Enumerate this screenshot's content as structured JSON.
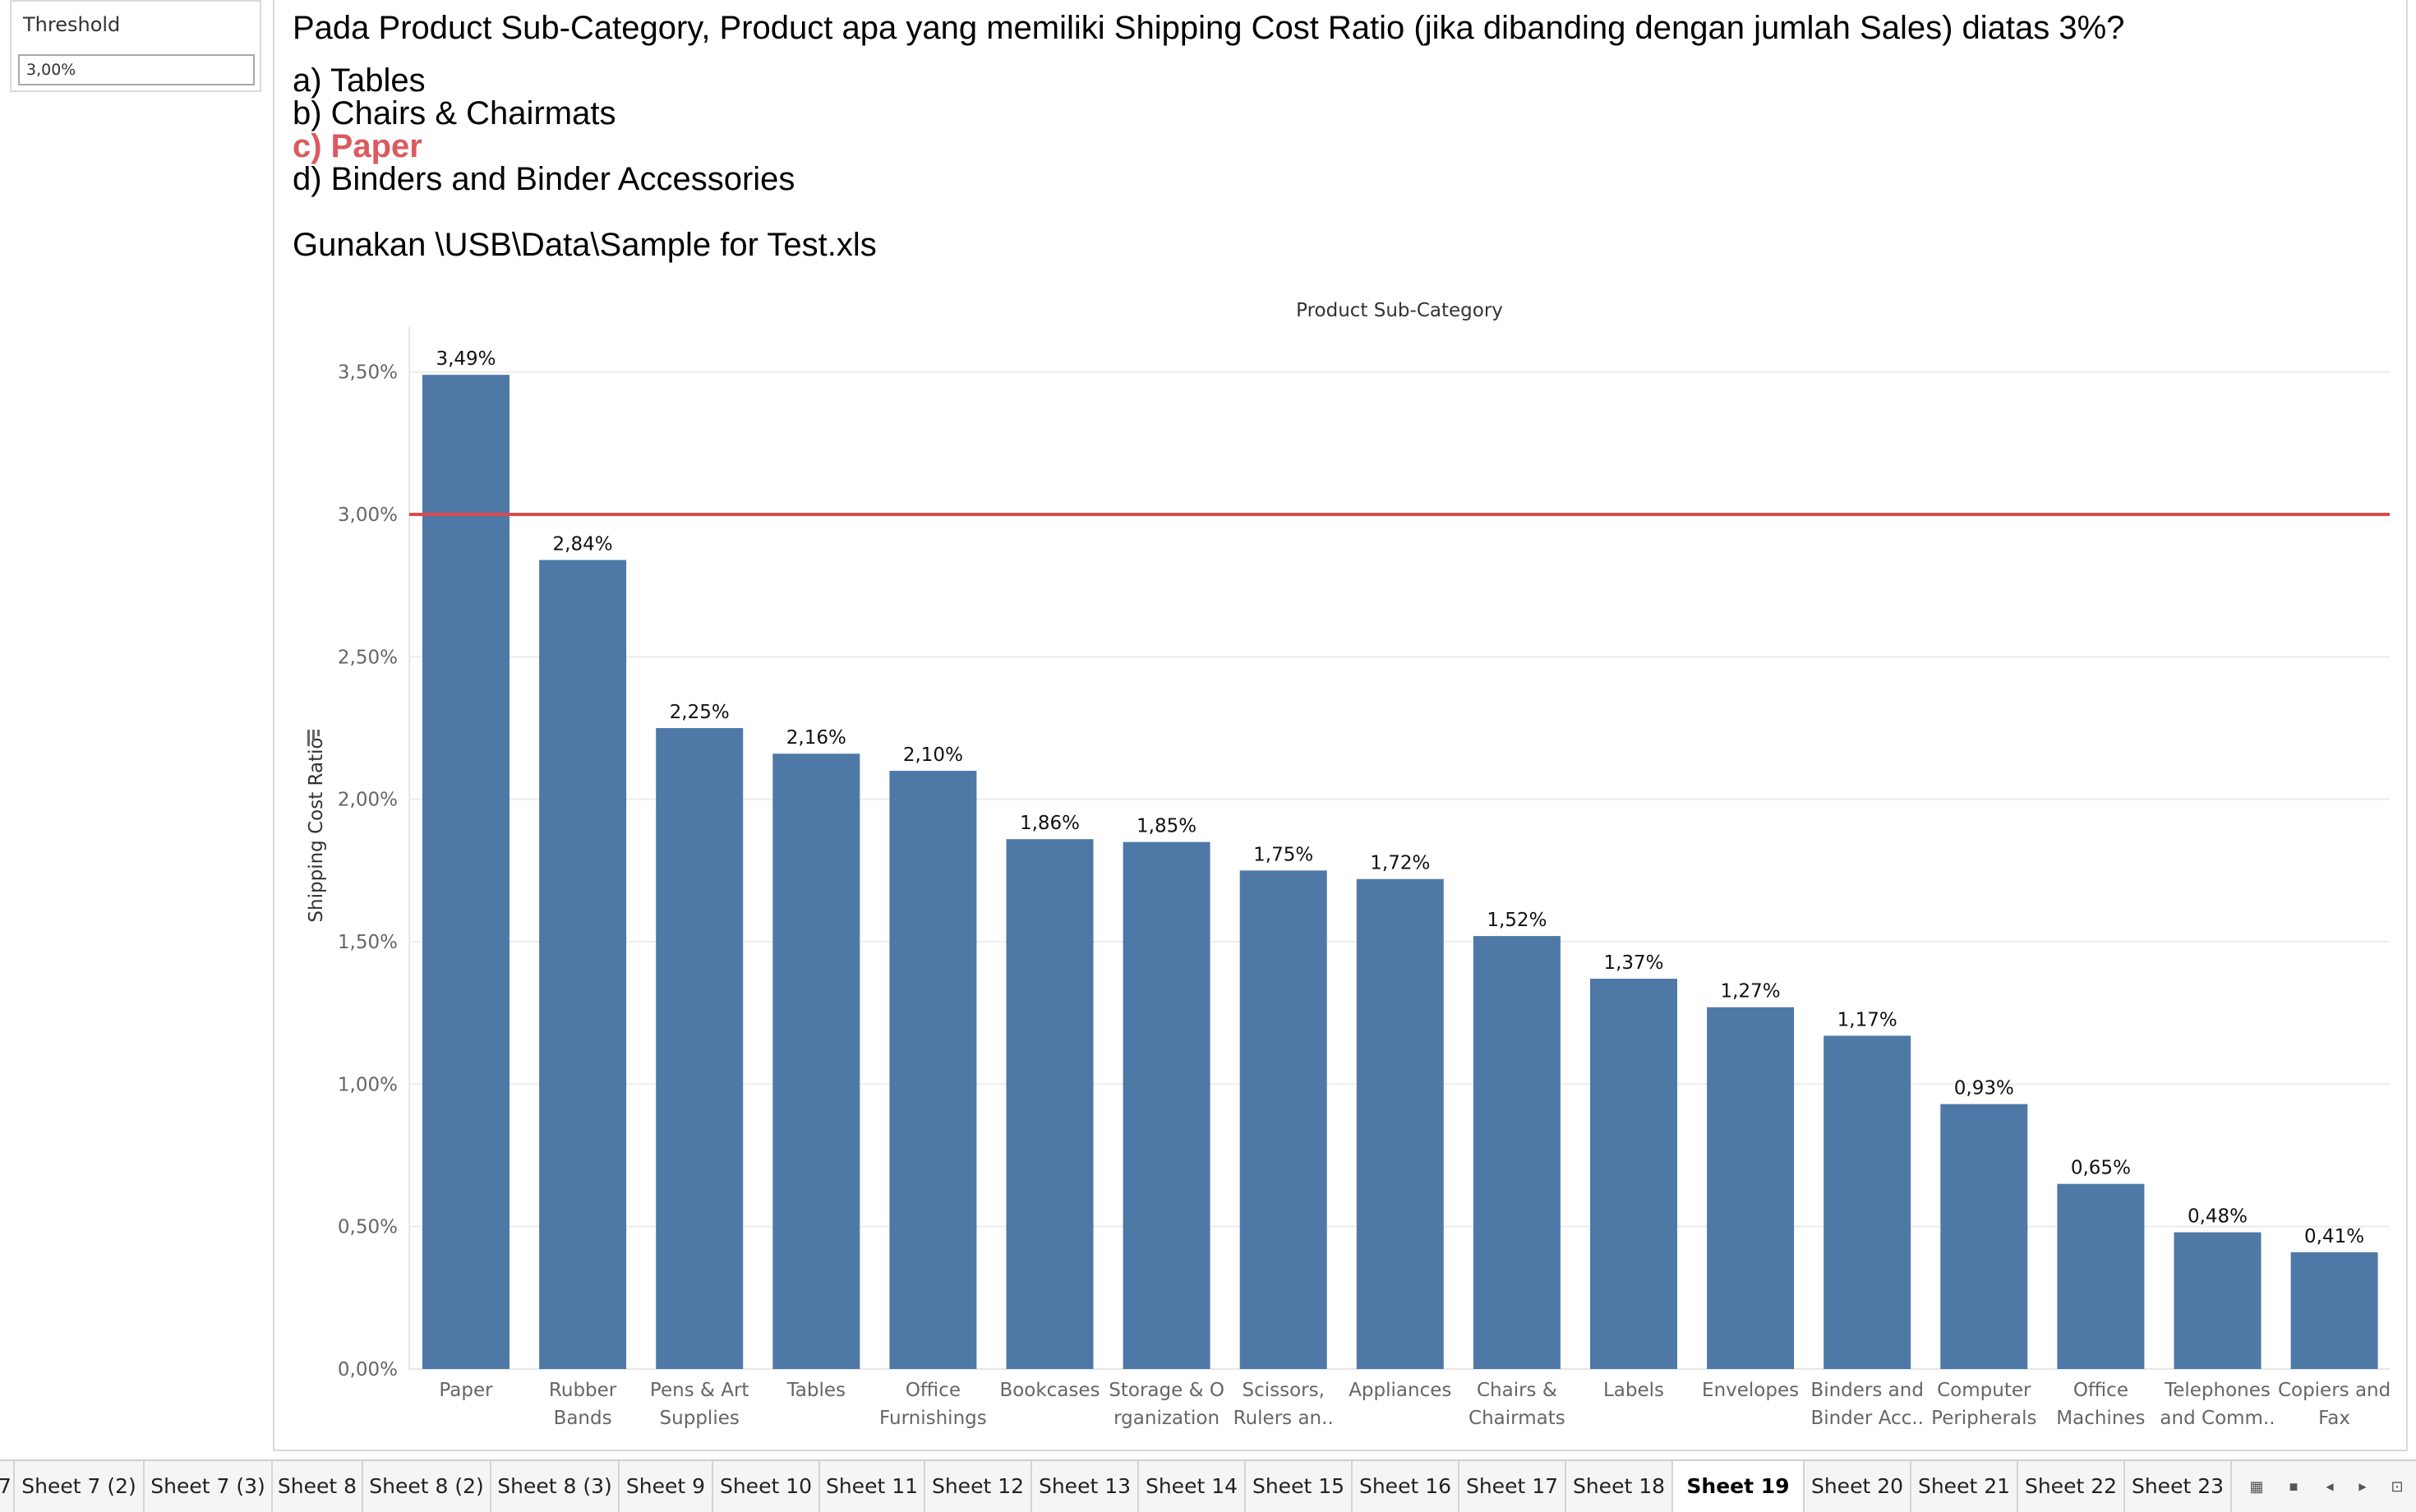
{
  "threshold": {
    "title": "Threshold",
    "value": "3,00%"
  },
  "question": {
    "text": "Pada Product Sub-Category, Product apa yang memiliki Shipping Cost Ratio (jika dibanding dengan jumlah Sales) diatas 3%?",
    "option_a": "a) Tables",
    "option_b": "b) Chairs & Chairmats",
    "option_c": "c) Paper",
    "option_d": "d) Binders and Binder Accessories",
    "source": "Gunakan \\USB\\Data\\Sample for Test.xls"
  },
  "colors": {
    "bar": "#4e79a7",
    "reference_line": "#d94a4e",
    "answer_highlight": "#dc5a5e"
  },
  "chart_data": {
    "type": "bar",
    "title": "Product Sub-Category",
    "ylabel": "Shipping Cost Ratio",
    "ylim": [
      0,
      0.036
    ],
    "yticks": [
      0,
      0.005,
      0.01,
      0.015,
      0.02,
      0.025,
      0.03,
      0.035
    ],
    "ytick_labels": [
      "0,00%",
      "0,50%",
      "1,00%",
      "1,50%",
      "2,00%",
      "2,50%",
      "3,00%",
      "3,50%"
    ],
    "reference_line": 0.03,
    "grid": true,
    "categories": [
      [
        "Paper"
      ],
      [
        "Rubber",
        "Bands"
      ],
      [
        "Pens & Art",
        "Supplies"
      ],
      [
        "Tables"
      ],
      [
        "Office",
        "Furnishings"
      ],
      [
        "Bookcases"
      ],
      [
        "Storage & O",
        "rganization"
      ],
      [
        "Scissors,",
        "Rulers an.."
      ],
      [
        "Appliances"
      ],
      [
        "Chairs &",
        "Chairmats"
      ],
      [
        "Labels"
      ],
      [
        "Envelopes"
      ],
      [
        "Binders and",
        "Binder Acc.."
      ],
      [
        "Computer",
        "Peripherals"
      ],
      [
        "Office",
        "Machines"
      ],
      [
        "Telephones",
        "and Comm.."
      ],
      [
        "Copiers and",
        "Fax"
      ]
    ],
    "values": [
      0.0349,
      0.0284,
      0.0225,
      0.0216,
      0.021,
      0.0186,
      0.0185,
      0.0175,
      0.0172,
      0.0152,
      0.0137,
      0.0127,
      0.0117,
      0.0093,
      0.0065,
      0.0048,
      0.0041
    ],
    "value_labels": [
      "3,49%",
      "2,84%",
      "2,25%",
      "2,16%",
      "2,10%",
      "1,86%",
      "1,85%",
      "1,75%",
      "1,72%",
      "1,52%",
      "1,37%",
      "1,27%",
      "1,17%",
      "0,93%",
      "0,65%",
      "0,48%",
      "0,41%"
    ]
  },
  "tabs": {
    "items": [
      "7",
      "Sheet 7 (2)",
      "Sheet 7 (3)",
      "Sheet 8",
      "Sheet 8 (2)",
      "Sheet 8 (3)",
      "Sheet 9",
      "Sheet 10",
      "Sheet 11",
      "Sheet 12",
      "Sheet 13",
      "Sheet 14",
      "Sheet 15",
      "Sheet 16",
      "Sheet 17",
      "Sheet 18",
      "Sheet 19",
      "Sheet 20",
      "Sheet 21",
      "Sheet 22",
      "Sheet 23"
    ],
    "active": "Sheet 19",
    "controls": [
      "show-sheet-sorter-icon",
      "show-filmstrip-icon",
      "previous-tab-icon",
      "next-tab-icon",
      "presentation-mode-icon"
    ]
  }
}
